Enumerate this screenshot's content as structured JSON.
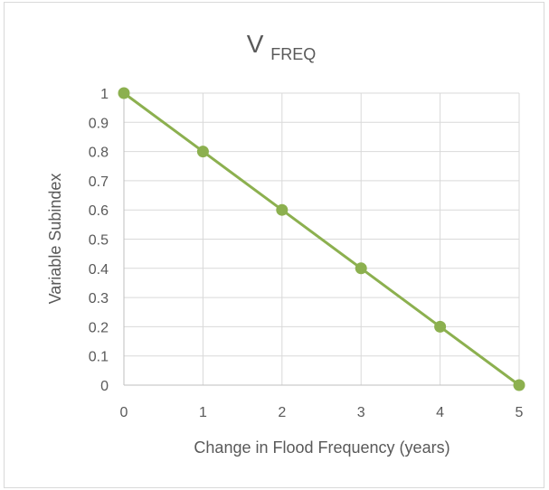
{
  "chart_data": {
    "type": "line",
    "title": {
      "main": "V",
      "subscript": "FREQ"
    },
    "xlabel": "Change in Flood Frequency (years)",
    "ylabel": "Variable Subindex",
    "xlim": [
      0,
      5
    ],
    "ylim": [
      0,
      1
    ],
    "x_ticks": [
      "0",
      "1",
      "2",
      "3",
      "4",
      "5"
    ],
    "y_ticks": [
      "0",
      "0.1",
      "0.2",
      "0.3",
      "0.4",
      "0.5",
      "0.6",
      "0.7",
      "0.8",
      "0.9",
      "1"
    ],
    "grid": true,
    "legend": "none",
    "series": [
      {
        "x": [
          0,
          1,
          2,
          3,
          4,
          5
        ],
        "values": [
          1,
          0.8,
          0.6,
          0.4,
          0.2,
          0
        ],
        "color": "#8cb04f"
      }
    ]
  }
}
